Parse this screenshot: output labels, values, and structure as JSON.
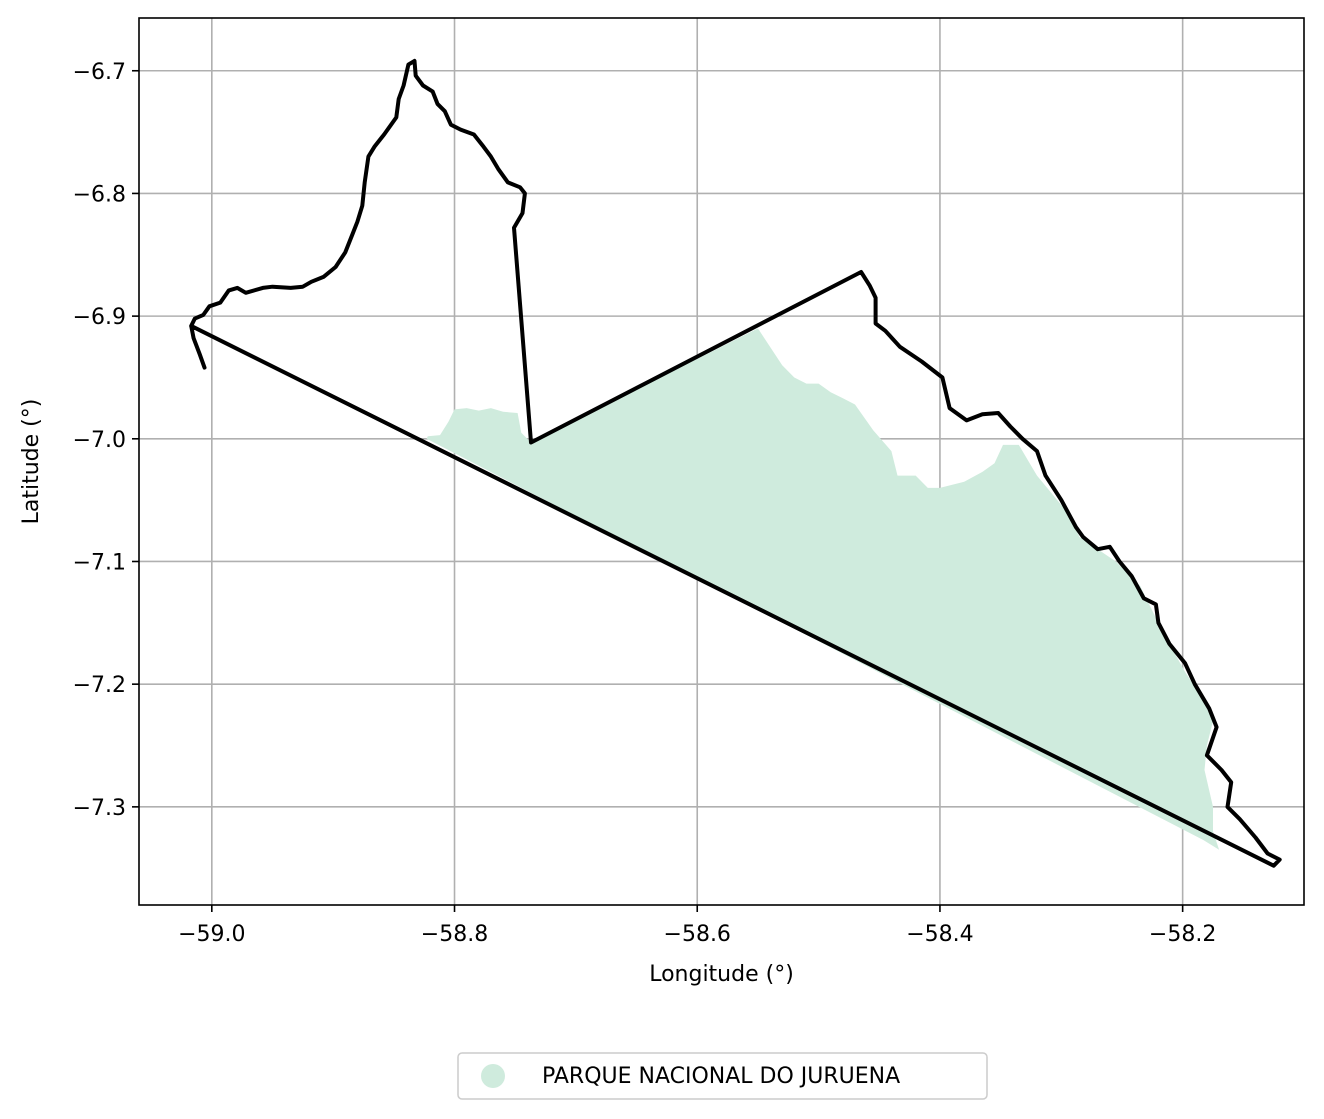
{
  "chart_data": {
    "type": "map",
    "xlabel": "Longitude (°)",
    "ylabel": "Latitude (°)",
    "xlim": [
      -59.06,
      -58.1
    ],
    "ylim": [
      -7.38,
      -6.657
    ],
    "grid": true,
    "x_ticks": [
      {
        "value": -59.0,
        "label": "−59.0"
      },
      {
        "value": -58.8,
        "label": "−58.8"
      },
      {
        "value": -58.6,
        "label": "−58.6"
      },
      {
        "value": -58.4,
        "label": "−58.4"
      },
      {
        "value": -58.2,
        "label": "−58.2"
      }
    ],
    "y_ticks": [
      {
        "value": -6.7,
        "label": "−6.7"
      },
      {
        "value": -6.8,
        "label": "−6.8"
      },
      {
        "value": -6.9,
        "label": "−6.9"
      },
      {
        "value": -7.0,
        "label": "−7.0"
      },
      {
        "value": -7.1,
        "label": "−7.1"
      },
      {
        "value": -7.2,
        "label": "−7.2"
      },
      {
        "value": -7.3,
        "label": "−7.3"
      }
    ],
    "legend": {
      "placement": "bottom-center",
      "entries": [
        {
          "label": "PARQUE NACIONAL DO JURUENA",
          "color": "#cfebdd"
        }
      ]
    },
    "park_area": {
      "name": "PARQUE NACIONAL DO JURUENA",
      "color": "#cfebdd",
      "coords": [
        [
          -58.822,
          -6.998
        ],
        [
          -58.812,
          -6.997
        ],
        [
          -58.805,
          -6.986
        ],
        [
          -58.8,
          -6.976
        ],
        [
          -58.79,
          -6.975
        ],
        [
          -58.78,
          -6.977
        ],
        [
          -58.77,
          -6.975
        ],
        [
          -58.76,
          -6.978
        ],
        [
          -58.748,
          -6.979
        ],
        [
          -58.745,
          -6.995
        ],
        [
          -58.737,
          -7.003
        ],
        [
          -58.55,
          -6.91
        ],
        [
          -58.54,
          -6.925
        ],
        [
          -58.53,
          -6.94
        ],
        [
          -58.52,
          -6.95
        ],
        [
          -58.51,
          -6.955
        ],
        [
          -58.5,
          -6.955
        ],
        [
          -58.49,
          -6.962
        ],
        [
          -58.48,
          -6.967
        ],
        [
          -58.47,
          -6.972
        ],
        [
          -58.455,
          -6.993
        ],
        [
          -58.44,
          -7.01
        ],
        [
          -58.435,
          -7.03
        ],
        [
          -58.42,
          -7.03
        ],
        [
          -58.41,
          -7.04
        ],
        [
          -58.4,
          -7.04
        ],
        [
          -58.38,
          -7.035
        ],
        [
          -58.365,
          -7.027
        ],
        [
          -58.355,
          -7.02
        ],
        [
          -58.348,
          -7.005
        ],
        [
          -58.335,
          -7.005
        ],
        [
          -58.32,
          -7.03
        ],
        [
          -58.295,
          -7.06
        ],
        [
          -58.285,
          -7.08
        ],
        [
          -58.255,
          -7.1
        ],
        [
          -58.235,
          -7.12
        ],
        [
          -58.225,
          -7.14
        ],
        [
          -58.215,
          -7.16
        ],
        [
          -58.198,
          -7.19
        ],
        [
          -58.185,
          -7.21
        ],
        [
          -58.175,
          -7.23
        ],
        [
          -58.18,
          -7.25
        ],
        [
          -58.182,
          -7.27
        ],
        [
          -58.175,
          -7.3
        ],
        [
          -58.175,
          -7.32
        ],
        [
          -58.17,
          -7.335
        ],
        [
          -58.183,
          -7.327
        ],
        [
          -58.823,
          -7.0
        ]
      ]
    },
    "boundary": {
      "color": "#000000",
      "coords": [
        [
          -59.006,
          -6.942
        ],
        [
          -59.01,
          -6.931
        ],
        [
          -59.015,
          -6.918
        ],
        [
          -59.017,
          -6.908
        ],
        [
          -59.014,
          -6.902
        ],
        [
          -59.007,
          -6.899
        ],
        [
          -59.002,
          -6.892
        ],
        [
          -58.993,
          -6.889
        ],
        [
          -58.986,
          -6.879
        ],
        [
          -58.979,
          -6.877
        ],
        [
          -58.972,
          -6.881
        ],
        [
          -58.958,
          -6.877
        ],
        [
          -58.95,
          -6.876
        ],
        [
          -58.935,
          -6.877
        ],
        [
          -58.925,
          -6.876
        ],
        [
          -58.918,
          -6.872
        ],
        [
          -58.908,
          -6.868
        ],
        [
          -58.898,
          -6.86
        ],
        [
          -58.89,
          -6.848
        ],
        [
          -58.884,
          -6.833
        ],
        [
          -58.88,
          -6.823
        ],
        [
          -58.876,
          -6.81
        ],
        [
          -58.874,
          -6.791
        ],
        [
          -58.871,
          -6.77
        ],
        [
          -58.866,
          -6.762
        ],
        [
          -58.858,
          -6.752
        ],
        [
          -58.848,
          -6.738
        ],
        [
          -58.846,
          -6.723
        ],
        [
          -58.842,
          -6.712
        ],
        [
          -58.838,
          -6.695
        ],
        [
          -58.833,
          -6.692
        ],
        [
          -58.832,
          -6.704
        ],
        [
          -58.826,
          -6.712
        ],
        [
          -58.818,
          -6.717
        ],
        [
          -58.814,
          -6.727
        ],
        [
          -58.808,
          -6.733
        ],
        [
          -58.803,
          -6.744
        ],
        [
          -58.795,
          -6.748
        ],
        [
          -58.784,
          -6.752
        ],
        [
          -58.776,
          -6.762
        ],
        [
          -58.77,
          -6.77
        ],
        [
          -58.764,
          -6.78
        ],
        [
          -58.756,
          -6.791
        ],
        [
          -58.746,
          -6.795
        ],
        [
          -58.742,
          -6.8
        ],
        [
          -58.744,
          -6.816
        ],
        [
          -58.751,
          -6.828
        ],
        [
          -58.737,
          -7.003
        ],
        [
          -58.465,
          -6.864
        ],
        [
          -58.458,
          -6.875
        ],
        [
          -58.453,
          -6.885
        ],
        [
          -58.453,
          -6.906
        ],
        [
          -58.445,
          -6.912
        ],
        [
          -58.433,
          -6.925
        ],
        [
          -58.415,
          -6.937
        ],
        [
          -58.398,
          -6.95
        ],
        [
          -58.392,
          -6.975
        ],
        [
          -58.378,
          -6.985
        ],
        [
          -58.365,
          -6.98
        ],
        [
          -58.352,
          -6.979
        ],
        [
          -58.342,
          -6.99
        ],
        [
          -58.332,
          -7.0
        ],
        [
          -58.32,
          -7.01
        ],
        [
          -58.313,
          -7.03
        ],
        [
          -58.3,
          -7.05
        ],
        [
          -58.288,
          -7.072
        ],
        [
          -58.282,
          -7.08
        ],
        [
          -58.27,
          -7.09
        ],
        [
          -58.26,
          -7.088
        ],
        [
          -58.252,
          -7.1
        ],
        [
          -58.242,
          -7.112
        ],
        [
          -58.232,
          -7.13
        ],
        [
          -58.222,
          -7.135
        ],
        [
          -58.22,
          -7.15
        ],
        [
          -58.211,
          -7.167
        ],
        [
          -58.198,
          -7.183
        ],
        [
          -58.19,
          -7.2
        ],
        [
          -58.178,
          -7.22
        ],
        [
          -58.172,
          -7.235
        ],
        [
          -58.18,
          -7.258
        ],
        [
          -58.168,
          -7.27
        ],
        [
          -58.16,
          -7.28
        ],
        [
          -58.163,
          -7.3
        ],
        [
          -58.153,
          -7.31
        ],
        [
          -58.14,
          -7.325
        ],
        [
          -58.13,
          -7.338
        ],
        [
          -58.12,
          -7.343
        ],
        [
          -58.125,
          -7.348
        ],
        [
          -59.017,
          -6.908
        ]
      ]
    }
  }
}
